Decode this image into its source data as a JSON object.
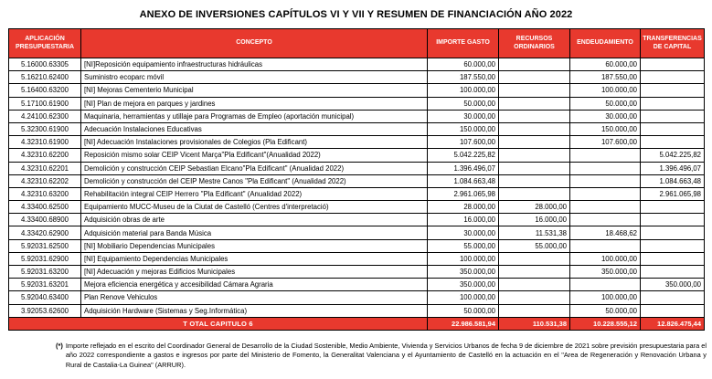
{
  "title": "ANEXO DE INVERSIONES CAPÍTULOS VI Y VII Y RESUMEN DE FINANCIACIÓN AÑO 2022",
  "colors": {
    "header_red": "#e8392e",
    "border_black": "#000000",
    "text_white": "#ffffff"
  },
  "table": {
    "headers": [
      "APLICACIÓN PRESUPUESTARIA",
      "CONCEPTO",
      "IMPORTE GASTO",
      "RECURSOS ORDINARIOS",
      "ENDEUDAMIENTO",
      "TRANSFERENCIAS DE CAPITAL"
    ],
    "rows": [
      {
        "code": "5.16000.63305",
        "concept": "[NI]Reposición equipamiento infraestructuras hidráulicas",
        "importe": "60.000,00",
        "recursos": "",
        "endeudamiento": "60.000,00",
        "transferencias": ""
      },
      {
        "code": "5.16210.62400",
        "concept": "Suministro ecoparc móvil",
        "importe": "187.550,00",
        "recursos": "",
        "endeudamiento": "187.550,00",
        "transferencias": ""
      },
      {
        "code": "5.16400.63200",
        "concept": "[NI] Mejoras Cementerio Municipal",
        "importe": "100.000,00",
        "recursos": "",
        "endeudamiento": "100.000,00",
        "transferencias": ""
      },
      {
        "code": "5.17100.61900",
        "concept": "[NI] Plan de mejora en parques y jardines",
        "importe": "50.000,00",
        "recursos": "",
        "endeudamiento": "50.000,00",
        "transferencias": ""
      },
      {
        "code": "4.24100.62300",
        "concept": "Maquinaria, herramientas y utillaje para Programas de Empleo (aportación municipal)",
        "importe": "30.000,00",
        "recursos": "",
        "endeudamiento": "30.000,00",
        "transferencias": ""
      },
      {
        "code": "5.32300.61900",
        "concept": "Adecuación Instalaciones Educativas",
        "importe": "150.000,00",
        "recursos": "",
        "endeudamiento": "150.000,00",
        "transferencias": ""
      },
      {
        "code": "4.32310.61900",
        "concept": "[NI] Adecuación Instalaciones provisionales de Colegios (Pla Edificant)",
        "importe": "107.600,00",
        "recursos": "",
        "endeudamiento": "107.600,00",
        "transferencias": ""
      },
      {
        "code": "4.32310.62200",
        "concept": "Reposición mismo solar CEIP Vicent Marça\"Pla Edificant\"(Anualidad 2022)",
        "importe": "5.042.225,82",
        "recursos": "",
        "endeudamiento": "",
        "transferencias": "5.042.225,82"
      },
      {
        "code": "4.32310.62201",
        "concept": "Demolición y construcción CEIP Sebastian Elcano\"Pla Edificant\" (Anualidad 2022)",
        "importe": "1.396.496,07",
        "recursos": "",
        "endeudamiento": "",
        "transferencias": "1.396.496,07"
      },
      {
        "code": "4.32310.62202",
        "concept": "Demolición y construcción del CEIP Mestre Canos \"Pla Edificant\" (Anualidad 2022)",
        "importe": "1.084.663,48",
        "recursos": "",
        "endeudamiento": "",
        "transferencias": "1.084.663,48"
      },
      {
        "code": "4.32310.63200",
        "concept": "Rehabilitación integral CEIP Herrero \"Pla Edificant\" (Anualidad 2022)",
        "importe": "2.961.065,98",
        "recursos": "",
        "endeudamiento": "",
        "transferencias": "2.961.065,98"
      },
      {
        "code": "4.33400.62500",
        "concept": "Equipamiento MUCC-Museu de la Ciutat de Castelló (Centres d'interpretació)",
        "importe": "28.000,00",
        "recursos": "28.000,00",
        "endeudamiento": "",
        "transferencias": ""
      },
      {
        "code": "4.33400.68900",
        "concept": "Adquisición obras de arte",
        "importe": "16.000,00",
        "recursos": "16.000,00",
        "endeudamiento": "",
        "transferencias": ""
      },
      {
        "code": "4.33420.62900",
        "concept": "Adquisición material para Banda Música",
        "importe": "30.000,00",
        "recursos": "11.531,38",
        "endeudamiento": "18.468,62",
        "transferencias": ""
      },
      {
        "code": "5.92031.62500",
        "concept": "[NI] Mobiliario Dependencias Municipales",
        "importe": "55.000,00",
        "recursos": "55.000,00",
        "endeudamiento": "",
        "transferencias": ""
      },
      {
        "code": "5.92031.62900",
        "concept": "[NI] Equipamiento Dependencias Municipales",
        "importe": "100.000,00",
        "recursos": "",
        "endeudamiento": "100.000,00",
        "transferencias": ""
      },
      {
        "code": "5.92031.63200",
        "concept": "[NI] Adecuación y mejoras Edificios Municipales",
        "importe": "350.000,00",
        "recursos": "",
        "endeudamiento": "350.000,00",
        "transferencias": ""
      },
      {
        "code": "5.92031.63201",
        "concept": "Mejora eficiencia energética y accesibilidad Cámara Agraria",
        "importe": "350.000,00",
        "recursos": "",
        "endeudamiento": "",
        "transferencias": "350.000,00"
      },
      {
        "code": "5.92040.63400",
        "concept": "Plan Renove Vehiculos",
        "importe": "100.000,00",
        "recursos": "",
        "endeudamiento": "100.000,00",
        "transferencias": ""
      },
      {
        "code": "3.92053.62600",
        "concept": "Adquisición Hardware (Sistemas y Seg.Informática)",
        "importe": "50.000,00",
        "recursos": "",
        "endeudamiento": "50.000,00",
        "transferencias": ""
      }
    ],
    "total": {
      "label": "T OTAL CAPITULO 6",
      "importe": "22.986.581,94",
      "recursos": "110.531,38",
      "endeudamiento": "10.228.555,12",
      "transferencias": "12.826.475,44"
    }
  },
  "footnote": {
    "marker": "(*)",
    "text": "Importe reflejado en el escrito del Coordinador General de Desarrollo de la Ciudad Sostenible, Medio Ambiente, Vivienda y Servicios Urbanos de fecha 9 de diciembre de 2021 sobre previsión presupuestaria para el año 2022 correspondiente a gastos e ingresos por parte del Ministerio de Fomento, la Generalitat Valenciana y el Ayuntamiento de Castelló en la actuación en el \"Area de Regeneración y Renovación Urbana y Rural de Castalia-La Guinea\" (ARRUR)."
  }
}
